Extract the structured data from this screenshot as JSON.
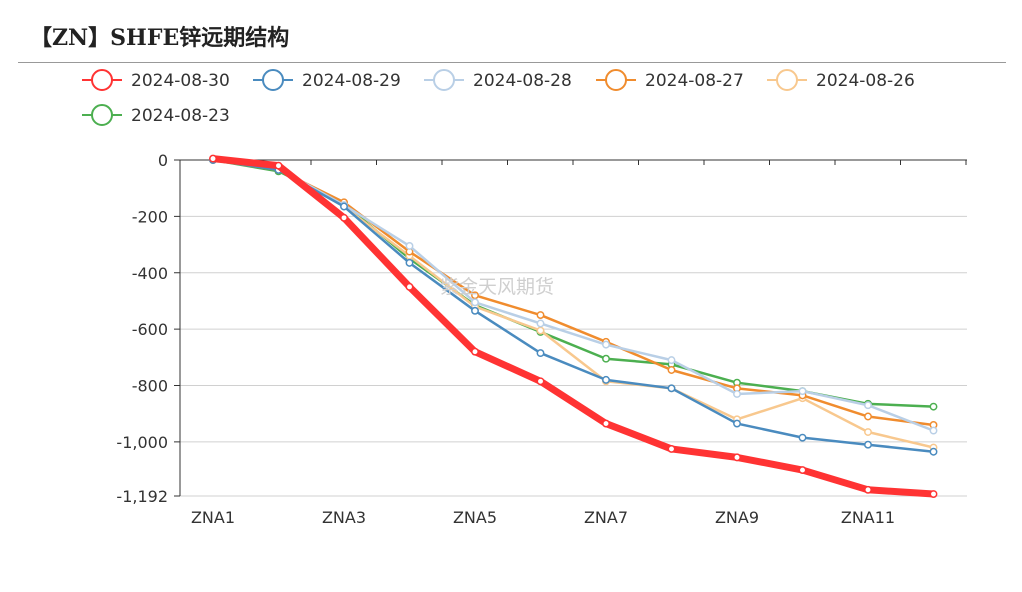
{
  "header": {
    "title": "【ZN】SHFE锌远期结构"
  },
  "watermark": "紫金天风期货",
  "chart_data": {
    "type": "line",
    "title": "【ZN】SHFE锌远期结构",
    "categories": [
      "ZNA1",
      "ZNA2",
      "ZNA3",
      "ZNA4",
      "ZNA5",
      "ZNA6",
      "ZNA7",
      "ZNA8",
      "ZNA9",
      "ZNA10",
      "ZNA11",
      "ZNA12"
    ],
    "x_tick_labels": [
      "ZNA1",
      "ZNA3",
      "ZNA5",
      "ZNA7",
      "ZNA9",
      "ZNA11"
    ],
    "y_tick_labels": [
      "0",
      "-200",
      "-400",
      "-600",
      "-800",
      "-1,000",
      "-1,192"
    ],
    "y_ticks": [
      0,
      -200,
      -400,
      -600,
      -800,
      -1000,
      -1192
    ],
    "ylim": [
      -1192,
      0
    ],
    "grid": true,
    "legend_position": "top",
    "series": [
      {
        "name": "2024-08-30",
        "color": "#ff3333",
        "values": [
          5,
          -20,
          -205,
          -450,
          -680,
          -785,
          -935,
          -1025,
          -1055,
          -1100,
          -1170,
          -1185
        ]
      },
      {
        "name": "2024-08-29",
        "color": "#4a8bbf",
        "values": [
          0,
          -35,
          -165,
          -365,
          -535,
          -685,
          -780,
          -810,
          -935,
          -985,
          -1010,
          -1035
        ]
      },
      {
        "name": "2024-08-28",
        "color": "#b9cfe6",
        "values": [
          0,
          -30,
          -160,
          -305,
          -505,
          -580,
          -655,
          -710,
          -830,
          -820,
          -870,
          -960
        ]
      },
      {
        "name": "2024-08-27",
        "color": "#f08c2e",
        "values": [
          0,
          -35,
          -150,
          -325,
          -480,
          -550,
          -645,
          -745,
          -810,
          -835,
          -910,
          -940
        ]
      },
      {
        "name": "2024-08-26",
        "color": "#f8c88e",
        "values": [
          0,
          -30,
          -165,
          -340,
          -520,
          -605,
          -785,
          -810,
          -920,
          -845,
          -965,
          -1020
        ]
      },
      {
        "name": "2024-08-23",
        "color": "#4caf50",
        "values": [
          0,
          -40,
          -155,
          -350,
          -515,
          -610,
          -705,
          -725,
          -790,
          -820,
          -865,
          -875
        ]
      }
    ]
  }
}
